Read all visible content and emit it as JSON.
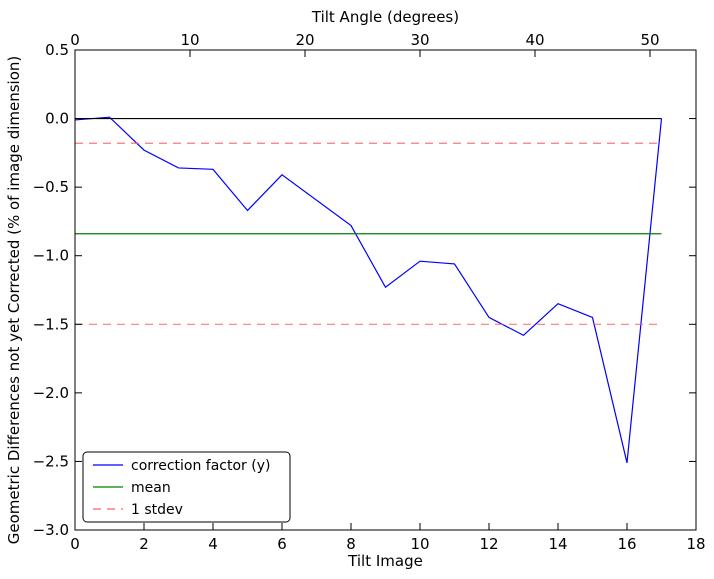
{
  "chart_data": {
    "type": "line",
    "title": "",
    "xlabel": "Tilt Image",
    "ylabel": "Geometric Differences not yet Corrected (% of image dimension)",
    "top_xlabel": "Tilt Angle (degrees)",
    "xlim": [
      0,
      18
    ],
    "ylim": [
      -3.0,
      0.5
    ],
    "top_xlim": [
      0,
      54
    ],
    "x_ticks": [
      0,
      2,
      4,
      6,
      8,
      10,
      12,
      14,
      16,
      18
    ],
    "y_ticks": [
      0.5,
      0.0,
      -0.5,
      -1.0,
      -1.5,
      -2.0,
      -2.5,
      -3.0
    ],
    "top_x_ticks": [
      0,
      10,
      20,
      30,
      40,
      50
    ],
    "x_tick_labels": [
      "0",
      "2",
      "4",
      "6",
      "8",
      "10",
      "12",
      "14",
      "16",
      "18"
    ],
    "y_tick_labels": [
      "0.5",
      "0.0",
      "−0.5",
      "−1.0",
      "−1.5",
      "−2.0",
      "−2.5",
      "−3.0"
    ],
    "top_x_tick_labels": [
      "0",
      "10",
      "20",
      "30",
      "40",
      "50"
    ],
    "grid": false,
    "legend_position": "lower-left",
    "series": [
      {
        "name": "correction factor (y)",
        "color": "#0000ff",
        "style": "solid",
        "x": [
          0,
          1,
          2,
          3,
          4,
          5,
          6,
          8,
          9,
          10,
          11,
          12,
          13,
          14,
          15,
          16,
          17
        ],
        "y": [
          -0.01,
          0.01,
          -0.23,
          -0.36,
          -0.37,
          -0.67,
          -0.41,
          -0.78,
          -1.23,
          -1.04,
          -1.06,
          -1.45,
          -1.58,
          -1.35,
          -1.45,
          -2.51,
          0.0
        ]
      },
      {
        "name": "mean",
        "color": "#008000",
        "style": "solid",
        "x": [
          0,
          17
        ],
        "y": [
          -0.84,
          -0.84
        ]
      },
      {
        "name": "1 stdev",
        "color": "#ff6060",
        "style": "dashed",
        "x": [
          0,
          17
        ],
        "y": [
          -0.18,
          -0.18
        ]
      },
      {
        "name": "",
        "color": "#ff6060",
        "style": "dashed",
        "x": [
          0,
          17
        ],
        "y": [
          -1.5,
          -1.5
        ]
      },
      {
        "name": "",
        "color": "#000000",
        "style": "solid",
        "x": [
          0,
          17
        ],
        "y": [
          0.0,
          0.0
        ]
      }
    ],
    "legend": [
      {
        "label": "correction factor (y)",
        "color": "#0000ff",
        "style": "solid"
      },
      {
        "label": "mean",
        "color": "#008000",
        "style": "solid"
      },
      {
        "label": "1 stdev",
        "color": "#ff6060",
        "style": "dashed"
      }
    ]
  }
}
